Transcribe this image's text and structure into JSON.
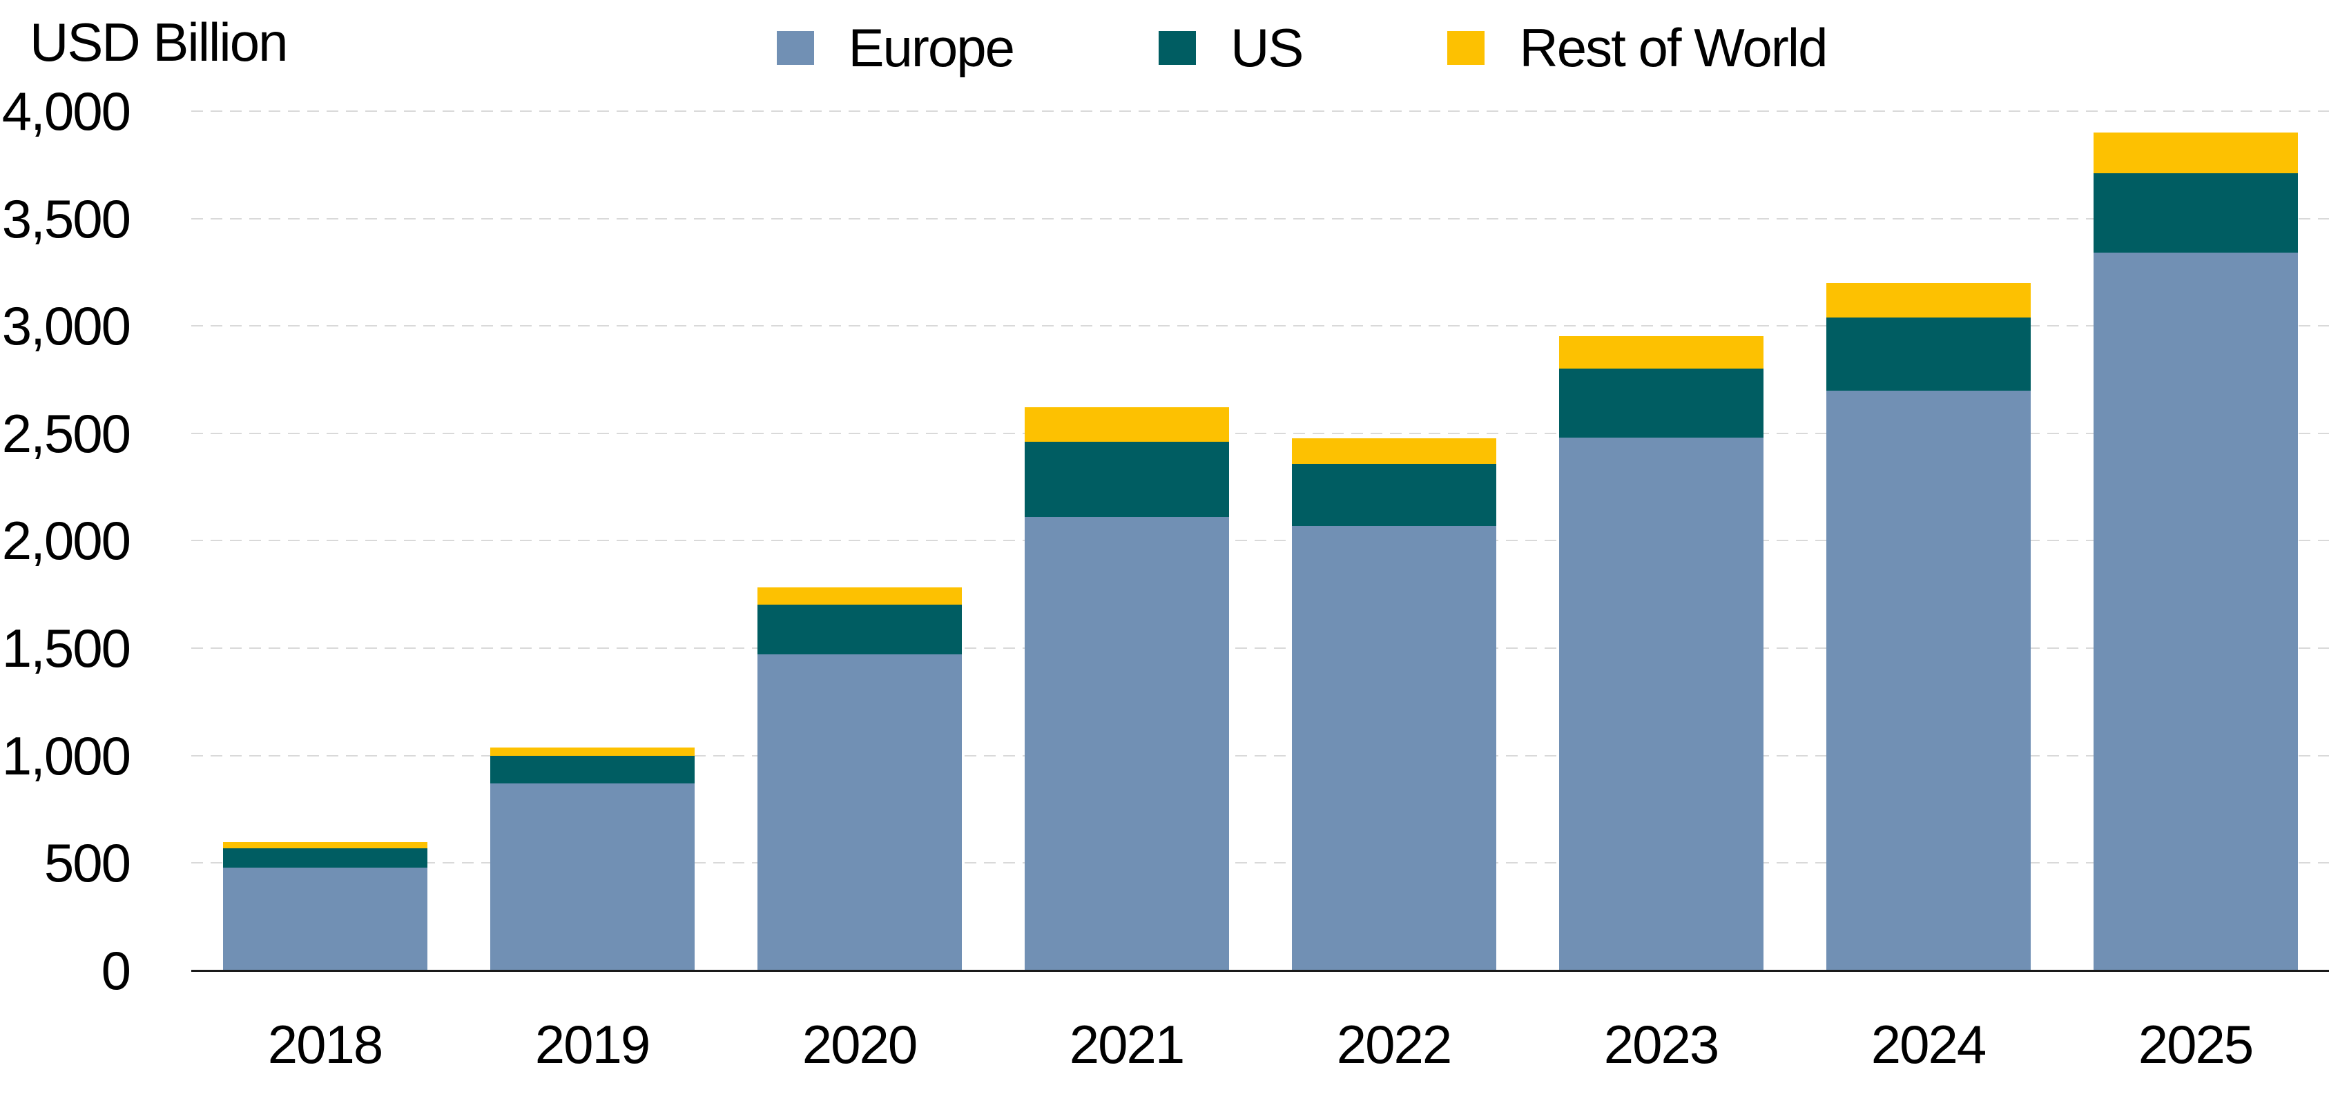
{
  "title": "USD Billion",
  "legend": [
    {
      "label": "Europe",
      "color": "#7190B4"
    },
    {
      "label": "US",
      "color": "#005D62"
    },
    {
      "label": "Rest of World",
      "color": "#FDC101"
    }
  ],
  "chart_data": {
    "type": "bar",
    "stacked": true,
    "title": "",
    "xlabel": "",
    "ylabel": "USD Billion",
    "categories": [
      "2018",
      "2019",
      "2020",
      "2021",
      "2022",
      "2023",
      "2024",
      "2025"
    ],
    "series": [
      {
        "name": "Europe",
        "color": "#7190B4",
        "values": [
          480,
          870,
          1470,
          2110,
          2070,
          2480,
          2700,
          3340
        ]
      },
      {
        "name": "US",
        "color": "#005D62",
        "values": [
          90,
          130,
          230,
          350,
          290,
          320,
          340,
          370
        ]
      },
      {
        "name": "Rest of World",
        "color": "#FDC101",
        "values": [
          30,
          40,
          80,
          160,
          120,
          150,
          160,
          190
        ]
      }
    ],
    "ylim": [
      0,
      4000
    ],
    "ytick_interval": 500,
    "yticks": [
      "0",
      "500",
      "1,000",
      "1,500",
      "2,000",
      "2,500",
      "3,000",
      "3,500",
      "4,000"
    ],
    "grid": true,
    "gridline_style": "dashed",
    "legend_position": "top-center",
    "colors": {
      "grid": "#D9D9D9",
      "axis": "#1A1A1A",
      "text": "#000000",
      "background": "#FFFFFF"
    }
  }
}
